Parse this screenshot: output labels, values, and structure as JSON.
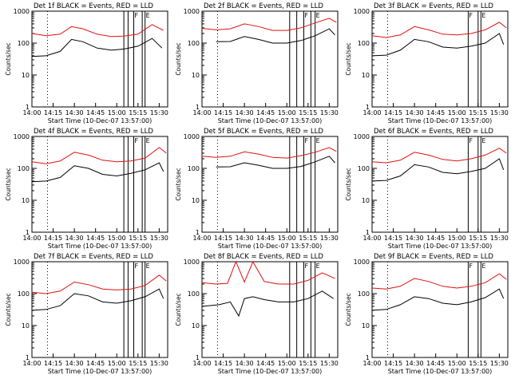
{
  "chart_data": {
    "type": "line",
    "yscale": "log",
    "ylabel": "Counts/sec",
    "xlabel": "Start Time (10-Dec-07 13:57:00)",
    "xlim": [
      "14:00",
      "15:36"
    ],
    "ylim": [
      1,
      1000
    ],
    "x_ticks": [
      "14:00",
      "14:15",
      "14:30",
      "14:45",
      "15:00",
      "15:15",
      "15:30"
    ],
    "y_ticks": [
      "1",
      "10",
      "100",
      "1000"
    ],
    "series_legend": "BLACK = Events, RED = LLD",
    "series_colors": {
      "events": "#000000",
      "lld": "#e01010"
    },
    "dotted_line_time": "14:11",
    "panels": [
      {
        "title": "Det 1f BLACK = Events, RED = LLD",
        "markers": [
          {
            "time": "15:05",
            "label": ""
          },
          {
            "time": "15:08",
            "label": ""
          },
          {
            "time": "15:12",
            "label": "F"
          },
          {
            "time": "15:18",
            "label": ""
          },
          {
            "time": "15:20",
            "label": "E"
          }
        ]
      },
      {
        "title": "Det 2f BLACK = Events, RED = LLD",
        "markers": [
          {
            "time": "15:02",
            "label": ""
          },
          {
            "time": "15:07",
            "label": ""
          },
          {
            "time": "15:12",
            "label": "F"
          },
          {
            "time": "15:17",
            "label": ""
          },
          {
            "time": "15:20",
            "label": "E"
          }
        ]
      },
      {
        "title": "Det 3f BLACK = Events, RED = LLD",
        "markers": [
          {
            "time": "15:08",
            "label": "F"
          },
          {
            "time": "15:15",
            "label": ""
          },
          {
            "time": "15:17",
            "label": "E"
          }
        ]
      },
      {
        "title": "Det 4f BLACK = Events, RED = LLD",
        "markers": [
          {
            "time": "15:05",
            "label": ""
          },
          {
            "time": "15:08",
            "label": ""
          },
          {
            "time": "15:12",
            "label": "F"
          },
          {
            "time": "15:18",
            "label": ""
          },
          {
            "time": "15:20",
            "label": "E"
          }
        ]
      },
      {
        "title": "Det 5f BLACK = Events, RED = LLD",
        "markers": [
          {
            "time": "15:02",
            "label": ""
          },
          {
            "time": "15:07",
            "label": ""
          },
          {
            "time": "15:12",
            "label": "F"
          },
          {
            "time": "15:17",
            "label": ""
          },
          {
            "time": "15:20",
            "label": "E"
          }
        ]
      },
      {
        "title": "Det 6f BLACK = Events, RED = LLD",
        "markers": [
          {
            "time": "15:08",
            "label": "F"
          },
          {
            "time": "15:15",
            "label": ""
          },
          {
            "time": "15:17",
            "label": "E"
          }
        ]
      },
      {
        "title": "Det 7f BLACK = Events, RED = LLD",
        "markers": [
          {
            "time": "15:05",
            "label": ""
          },
          {
            "time": "15:08",
            "label": ""
          },
          {
            "time": "15:12",
            "label": "F"
          },
          {
            "time": "15:18",
            "label": ""
          },
          {
            "time": "15:20",
            "label": "E"
          }
        ]
      },
      {
        "title": "Det 8f BLACK = Events, RED = LLD",
        "markers": [
          {
            "time": "15:02",
            "label": ""
          },
          {
            "time": "15:07",
            "label": ""
          },
          {
            "time": "15:12",
            "label": "F"
          },
          {
            "time": "15:17",
            "label": ""
          },
          {
            "time": "15:20",
            "label": "E"
          }
        ]
      },
      {
        "title": "Det 9f BLACK = Events, RED = LLD",
        "markers": [
          {
            "time": "15:08",
            "label": "F"
          },
          {
            "time": "15:15",
            "label": ""
          },
          {
            "time": "15:17",
            "label": "E"
          }
        ]
      }
    ],
    "series": [
      {
        "panel": 0,
        "color": "red",
        "x": [
          "14:00",
          "14:10",
          "14:20",
          "14:28",
          "14:36",
          "14:46",
          "14:56",
          "15:05",
          "15:15",
          "15:25",
          "15:33"
        ],
        "y": [
          200,
          170,
          190,
          330,
          280,
          190,
          160,
          165,
          190,
          380,
          250
        ]
      },
      {
        "panel": 0,
        "color": "black",
        "x": [
          "14:00",
          "14:10",
          "14:20",
          "14:28",
          "14:36",
          "14:46",
          "14:56",
          "15:05",
          "15:15",
          "15:25",
          "15:32"
        ],
        "y": [
          38,
          40,
          55,
          130,
          110,
          70,
          60,
          65,
          80,
          140,
          70
        ]
      },
      {
        "panel": 1,
        "color": "red",
        "x": [
          "14:00",
          "14:10",
          "14:20",
          "14:30",
          "14:40",
          "14:50",
          "15:00",
          "15:10",
          "15:20",
          "15:30",
          "15:35"
        ],
        "y": [
          290,
          260,
          280,
          400,
          330,
          250,
          250,
          300,
          430,
          600,
          450
        ]
      },
      {
        "panel": 1,
        "color": "black",
        "x": [
          "14:10",
          "14:20",
          "14:30",
          "14:40",
          "14:50",
          "15:00",
          "15:10",
          "15:20",
          "15:30",
          "15:34"
        ],
        "y": [
          110,
          112,
          160,
          130,
          100,
          100,
          120,
          170,
          280,
          180
        ]
      },
      {
        "panel": 2,
        "color": "red",
        "x": [
          "14:00",
          "14:10",
          "14:20",
          "14:30",
          "14:40",
          "14:50",
          "15:00",
          "15:10",
          "15:20",
          "15:30",
          "15:35"
        ],
        "y": [
          170,
          150,
          180,
          330,
          260,
          190,
          180,
          200,
          260,
          450,
          300
        ]
      },
      {
        "panel": 2,
        "color": "black",
        "x": [
          "14:00",
          "14:10",
          "14:20",
          "14:30",
          "14:40",
          "14:50",
          "15:00",
          "15:10",
          "15:20",
          "15:30",
          "15:33"
        ],
        "y": [
          40,
          42,
          60,
          130,
          110,
          75,
          70,
          80,
          100,
          200,
          90
        ]
      },
      {
        "panel": 3,
        "color": "red",
        "x": [
          "14:00",
          "14:10",
          "14:20",
          "14:30",
          "14:40",
          "14:50",
          "15:00",
          "15:10",
          "15:20",
          "15:30",
          "15:35"
        ],
        "y": [
          160,
          140,
          170,
          320,
          260,
          180,
          160,
          170,
          210,
          450,
          300
        ]
      },
      {
        "panel": 3,
        "color": "black",
        "x": [
          "14:00",
          "14:10",
          "14:20",
          "14:30",
          "14:40",
          "14:50",
          "15:00",
          "15:10",
          "15:20",
          "15:30",
          "15:33"
        ],
        "y": [
          38,
          40,
          52,
          120,
          100,
          65,
          58,
          70,
          90,
          150,
          80
        ]
      },
      {
        "panel": 4,
        "color": "red",
        "x": [
          "14:00",
          "14:10",
          "14:20",
          "14:30",
          "14:40",
          "14:50",
          "15:00",
          "15:10",
          "15:20",
          "15:30",
          "15:35"
        ],
        "y": [
          240,
          220,
          240,
          330,
          280,
          220,
          210,
          250,
          320,
          450,
          340
        ]
      },
      {
        "panel": 4,
        "color": "black",
        "x": [
          "14:10",
          "14:20",
          "14:30",
          "14:40",
          "14:50",
          "15:00",
          "15:10",
          "15:20",
          "15:30",
          "15:34"
        ],
        "y": [
          110,
          112,
          150,
          125,
          100,
          100,
          115,
          160,
          240,
          150
        ]
      },
      {
        "panel": 5,
        "color": "red",
        "x": [
          "14:00",
          "14:10",
          "14:20",
          "14:30",
          "14:40",
          "14:50",
          "15:00",
          "15:10",
          "15:20",
          "15:30",
          "15:35"
        ],
        "y": [
          160,
          150,
          180,
          320,
          260,
          190,
          170,
          200,
          260,
          430,
          300
        ]
      },
      {
        "panel": 5,
        "color": "black",
        "x": [
          "14:00",
          "14:10",
          "14:20",
          "14:30",
          "14:40",
          "14:50",
          "15:00",
          "15:10",
          "15:20",
          "15:30",
          "15:33"
        ],
        "y": [
          40,
          42,
          58,
          130,
          110,
          75,
          68,
          80,
          100,
          200,
          90
        ]
      },
      {
        "panel": 6,
        "color": "red",
        "x": [
          "14:00",
          "14:10",
          "14:20",
          "14:30",
          "14:40",
          "14:50",
          "15:00",
          "15:10",
          "15:20",
          "15:30",
          "15:35"
        ],
        "y": [
          110,
          100,
          120,
          230,
          190,
          140,
          130,
          140,
          180,
          380,
          250
        ]
      },
      {
        "panel": 6,
        "color": "black",
        "x": [
          "14:00",
          "14:10",
          "14:20",
          "14:30",
          "14:40",
          "14:50",
          "15:00",
          "15:10",
          "15:20",
          "15:30",
          "15:33"
        ],
        "y": [
          30,
          32,
          42,
          100,
          85,
          55,
          50,
          60,
          80,
          140,
          70
        ]
      },
      {
        "panel": 7,
        "color": "red",
        "x": [
          "14:00",
          "14:10",
          "14:18",
          "14:24",
          "14:30",
          "14:36",
          "14:44",
          "14:54",
          "15:05",
          "15:15",
          "15:25",
          "15:34"
        ],
        "y": [
          220,
          200,
          210,
          1000,
          230,
          1000,
          240,
          200,
          200,
          260,
          450,
          300
        ]
      },
      {
        "panel": 7,
        "color": "black",
        "x": [
          "14:00",
          "14:05",
          "14:12",
          "14:20",
          "14:26",
          "14:30",
          "14:36",
          "14:44",
          "14:54",
          "15:05",
          "15:15",
          "15:25",
          "15:33"
        ],
        "y": [
          40,
          42,
          45,
          55,
          20,
          70,
          80,
          65,
          55,
          55,
          70,
          120,
          70
        ]
      },
      {
        "panel": 8,
        "color": "red",
        "x": [
          "14:00",
          "14:10",
          "14:20",
          "14:30",
          "14:40",
          "14:50",
          "15:00",
          "15:10",
          "15:20",
          "15:30",
          "15:35"
        ],
        "y": [
          150,
          140,
          170,
          300,
          240,
          170,
          150,
          170,
          220,
          420,
          280
        ]
      },
      {
        "panel": 8,
        "color": "black",
        "x": [
          "14:00",
          "14:10",
          "14:20",
          "14:30",
          "14:40",
          "14:50",
          "15:00",
          "15:10",
          "15:20",
          "15:30",
          "15:33"
        ],
        "y": [
          30,
          32,
          45,
          80,
          70,
          50,
          45,
          55,
          75,
          140,
          70
        ]
      }
    ]
  }
}
